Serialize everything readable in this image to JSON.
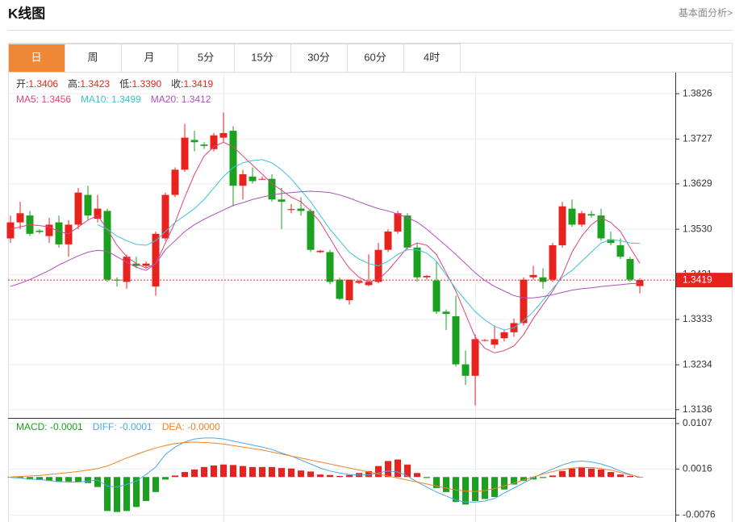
{
  "header": {
    "title": "K线图",
    "link": "基本面分析>"
  },
  "tabs": [
    "日",
    "周",
    "月",
    "5分",
    "15分",
    "30分",
    "60分",
    "4时"
  ],
  "active_tab": 0,
  "chart_data": [
    {
      "type": "candlestick",
      "info": [
        {
          "label": "开:",
          "value": "1.3406"
        },
        {
          "label": "高:",
          "value": "1.3423"
        },
        {
          "label": "低:",
          "value": "1.3390"
        },
        {
          "label": "收:",
          "value": "1.3419"
        }
      ],
      "up_color": "#e8231f",
      "down_color": "#1ba11f",
      "open": [
        1.351,
        1.3545,
        1.356,
        1.3527,
        1.3515,
        1.3545,
        1.3497,
        1.354,
        1.3605,
        1.3553,
        1.357,
        1.342,
        1.3415,
        1.3455,
        1.345,
        1.3405,
        1.351,
        1.3605,
        1.366,
        1.3725,
        1.3715,
        1.3705,
        1.373,
        1.3745,
        1.3625,
        1.3645,
        1.364,
        1.364,
        1.3595,
        1.3572,
        1.3575,
        1.357,
        1.348,
        1.348,
        1.342,
        1.3375,
        1.3413,
        1.3408,
        1.3415,
        1.3485,
        1.3525,
        1.356,
        1.349,
        1.3425,
        1.3418,
        1.335,
        1.334,
        1.3235,
        1.321,
        1.3287,
        1.3278,
        1.3292,
        1.3305,
        1.3325,
        1.3425,
        1.3425,
        1.342,
        1.3495,
        1.3575,
        1.354,
        1.3563,
        1.356,
        1.3508,
        1.3495,
        1.3465,
        1.3406
      ],
      "high": [
        1.356,
        1.359,
        1.357,
        1.353,
        1.3555,
        1.356,
        1.355,
        1.362,
        1.3625,
        1.3605,
        1.3575,
        1.3425,
        1.3475,
        1.347,
        1.346,
        1.3525,
        1.361,
        1.3665,
        1.376,
        1.3745,
        1.372,
        1.374,
        1.3785,
        1.3755,
        1.366,
        1.3665,
        1.3645,
        1.365,
        1.362,
        1.3585,
        1.36,
        1.3575,
        1.3485,
        1.3485,
        1.3425,
        1.342,
        1.342,
        1.3475,
        1.35,
        1.353,
        1.357,
        1.3565,
        1.35,
        1.343,
        1.346,
        1.3355,
        1.3385,
        1.3265,
        1.33,
        1.329,
        1.332,
        1.331,
        1.3335,
        1.3425,
        1.345,
        1.3445,
        1.35,
        1.359,
        1.3595,
        1.357,
        1.357,
        1.3575,
        1.3525,
        1.351,
        1.347,
        1.3423
      ],
      "low": [
        1.35,
        1.353,
        1.3515,
        1.352,
        1.35,
        1.349,
        1.347,
        1.353,
        1.355,
        1.3545,
        1.3415,
        1.3405,
        1.34,
        1.3445,
        1.3445,
        1.3385,
        1.3505,
        1.36,
        1.3655,
        1.37,
        1.3705,
        1.37,
        1.372,
        1.358,
        1.3595,
        1.363,
        1.3638,
        1.359,
        1.353,
        1.3565,
        1.356,
        1.348,
        1.3478,
        1.341,
        1.3375,
        1.3365,
        1.341,
        1.3405,
        1.3412,
        1.348,
        1.352,
        1.3485,
        1.3415,
        1.342,
        1.3345,
        1.331,
        1.323,
        1.319,
        1.3145,
        1.3285,
        1.327,
        1.3285,
        1.3295,
        1.332,
        1.342,
        1.34,
        1.3415,
        1.349,
        1.3535,
        1.3535,
        1.3555,
        1.3505,
        1.3495,
        1.3465,
        1.3415,
        1.339
      ],
      "close": [
        1.3545,
        1.3565,
        1.352,
        1.3524,
        1.354,
        1.3497,
        1.354,
        1.361,
        1.356,
        1.3575,
        1.342,
        1.3418,
        1.347,
        1.345,
        1.3455,
        1.352,
        1.3605,
        1.366,
        1.373,
        1.372,
        1.3712,
        1.3735,
        1.374,
        1.3625,
        1.365,
        1.3635,
        1.364,
        1.3595,
        1.359,
        1.3574,
        1.357,
        1.3485,
        1.3483,
        1.3415,
        1.3378,
        1.342,
        1.3417,
        1.3415,
        1.3485,
        1.3525,
        1.3565,
        1.349,
        1.3425,
        1.3428,
        1.335,
        1.3345,
        1.3235,
        1.321,
        1.329,
        1.3288,
        1.329,
        1.3305,
        1.3325,
        1.342,
        1.343,
        1.3415,
        1.3495,
        1.358,
        1.354,
        1.3565,
        1.356,
        1.351,
        1.35,
        1.347,
        1.342,
        1.3419
      ],
      "series": [
        {
          "name": "MA5: 1.3456",
          "color": "#e0457b",
          "values": [
            1.353,
            1.3535,
            1.354,
            1.3538,
            1.3535,
            1.3525,
            1.352,
            1.3535,
            1.355,
            1.356,
            1.353,
            1.3495,
            1.347,
            1.3455,
            1.3445,
            1.3455,
            1.35,
            1.3545,
            1.36,
            1.365,
            1.369,
            1.371,
            1.372,
            1.371,
            1.369,
            1.367,
            1.365,
            1.363,
            1.3615,
            1.36,
            1.359,
            1.357,
            1.3545,
            1.351,
            1.3475,
            1.3445,
            1.3425,
            1.3415,
            1.342,
            1.344,
            1.3465,
            1.349,
            1.35,
            1.3495,
            1.3475,
            1.3435,
            1.3395,
            1.3345,
            1.3295,
            1.327,
            1.326,
            1.3265,
            1.3275,
            1.33,
            1.3335,
            1.3365,
            1.3395,
            1.343,
            1.348,
            1.3515,
            1.354,
            1.3555,
            1.3545,
            1.3525,
            1.349,
            1.3456
          ]
        },
        {
          "name": "MA10: 1.3499",
          "color": "#3cc3d8",
          "values": [
            null,
            null,
            null,
            null,
            null,
            null,
            null,
            null,
            null,
            1.354,
            1.353,
            1.3515,
            1.3505,
            1.3497,
            1.3495,
            1.3505,
            1.3525,
            1.3545,
            1.356,
            1.3575,
            1.3595,
            1.362,
            1.3645,
            1.3665,
            1.3675,
            1.368,
            1.3682,
            1.3675,
            1.366,
            1.364,
            1.3615,
            1.359,
            1.356,
            1.353,
            1.3505,
            1.348,
            1.3465,
            1.3455,
            1.345,
            1.346,
            1.3475,
            1.3485,
            1.3485,
            1.3478,
            1.346,
            1.343,
            1.34,
            1.3375,
            1.335,
            1.3332,
            1.3318,
            1.331,
            1.3315,
            1.333,
            1.335,
            1.3375,
            1.34,
            1.3425,
            1.344,
            1.346,
            1.348,
            1.35,
            1.3507,
            1.3505,
            1.35,
            1.3499
          ]
        },
        {
          "name": "MA20: 1.3412",
          "color": "#b04fc0",
          "values": [
            1.3405,
            1.3412,
            1.342,
            1.343,
            1.344,
            1.3452,
            1.3462,
            1.3472,
            1.348,
            1.3484,
            1.3482,
            1.347,
            1.3458,
            1.3447,
            1.344,
            1.3455,
            1.3485,
            1.3505,
            1.3525,
            1.354,
            1.3552,
            1.3562,
            1.3572,
            1.3582,
            1.3588,
            1.3595,
            1.36,
            1.3605,
            1.3608,
            1.361,
            1.3612,
            1.3613,
            1.3612,
            1.361,
            1.3605,
            1.3598,
            1.359,
            1.3582,
            1.3575,
            1.357,
            1.3563,
            1.3555,
            1.3546,
            1.353,
            1.3512,
            1.3494,
            1.3475,
            1.3455,
            1.3435,
            1.3418,
            1.3405,
            1.3395,
            1.3385,
            1.338,
            1.338,
            1.3383,
            1.3387,
            1.3392,
            1.3397,
            1.34,
            1.3402,
            1.3405,
            1.3407,
            1.3409,
            1.3411,
            1.3412
          ]
        }
      ],
      "ylim": [
        1.3118,
        1.3872
      ],
      "yticks": [
        1.3826,
        1.3727,
        1.3629,
        {
          "value": 1.353,
          "label": "1.3530"
        },
        1.3431,
        1.3333,
        1.3234,
        1.3136
      ],
      "last_price": 1.3419,
      "grid": true
    },
    {
      "type": "macd",
      "series": [
        {
          "name": "MACD: -0.0001",
          "color": "#e8231f",
          "negative_color": "#1ba11f",
          "values": [
            -0.0001,
            -0.0002,
            -0.0005,
            -0.0006,
            -0.0008,
            -0.001,
            -0.0009,
            -0.001,
            -0.0012,
            -0.002,
            -0.0068,
            -0.007,
            -0.0068,
            -0.006,
            -0.0048,
            -0.003,
            -0.0005,
            0.0003,
            0.001,
            0.0015,
            0.002,
            0.0023,
            0.0025,
            0.0024,
            0.0022,
            0.002,
            0.002,
            0.002,
            0.0018,
            0.0017,
            0.0013,
            0.0011,
            0.0005,
            0.0004,
            0.0002,
            0.0004,
            0.0008,
            0.0012,
            0.0022,
            0.0032,
            0.0035,
            0.0025,
            0.0008,
            -0.0002,
            -0.0022,
            -0.003,
            -0.005,
            -0.0055,
            -0.0048,
            -0.0044,
            -0.004,
            -0.0025,
            -0.0015,
            -0.0008,
            -0.0005,
            -0.0002,
            0.0003,
            0.0012,
            0.0017,
            0.002,
            0.0017,
            0.0015,
            0.001,
            0.0005,
            0.0002,
            -0.0001
          ]
        },
        {
          "name": "DIFF: -0.0001",
          "color": "#4fa8e6",
          "values": [
            -0.0001,
            -0.0002,
            -0.0004,
            -0.0005,
            -0.0007,
            -0.0009,
            -0.001,
            -0.001,
            -0.0008,
            -0.0006,
            -0.0018,
            -0.002,
            -0.0015,
            -0.0008,
            0.0005,
            0.002,
            0.0045,
            0.006,
            0.007,
            0.0076,
            0.0078,
            0.0078,
            0.0076,
            0.0072,
            0.0068,
            0.0064,
            0.006,
            0.0055,
            0.0048,
            0.0042,
            0.0034,
            0.0026,
            0.0018,
            0.0012,
            0.0008,
            0.0005,
            0.0004,
            0.0004,
            0.0008,
            0.0012,
            0.001,
            0.0002,
            -0.001,
            -0.002,
            -0.003,
            -0.0038,
            -0.0046,
            -0.005,
            -0.005,
            -0.0048,
            -0.0043,
            -0.0032,
            -0.0022,
            -0.0012,
            -0.0002,
            0.0008,
            0.0016,
            0.0024,
            0.003,
            0.0032,
            0.003,
            0.0026,
            0.002,
            0.0012,
            0.0005,
            -0.0001
          ]
        },
        {
          "name": "DEA: -0.0000",
          "color": "#f0832a",
          "values": [
            0,
            0.0001,
            0.0002,
            0.0003,
            0.0005,
            0.0007,
            0.0009,
            0.0011,
            0.0014,
            0.0017,
            0.0022,
            0.003,
            0.0038,
            0.0045,
            0.0052,
            0.0058,
            0.0063,
            0.0067,
            0.0069,
            0.007,
            0.0069,
            0.0068,
            0.0066,
            0.0063,
            0.006,
            0.0057,
            0.0054,
            0.005,
            0.0046,
            0.0042,
            0.0038,
            0.0034,
            0.003,
            0.0026,
            0.0022,
            0.0018,
            0.0014,
            0.001,
            0.0006,
            0.0002,
            -0.0002,
            -0.0006,
            -0.001,
            -0.0014,
            -0.0018,
            -0.0022,
            -0.0026,
            -0.0028,
            -0.0029,
            -0.0027,
            -0.0023,
            -0.0018,
            -0.0012,
            -0.0006,
            0,
            0.0006,
            0.0011,
            0.0015,
            0.0018,
            0.0019,
            0.0019,
            0.0017,
            0.0014,
            0.0009,
            0.0004,
            0
          ]
        }
      ],
      "ylim": [
        -0.009,
        0.0115
      ],
      "yticks": [
        0.0107,
        0.0016,
        -0.0076
      ],
      "grid": true
    }
  ]
}
